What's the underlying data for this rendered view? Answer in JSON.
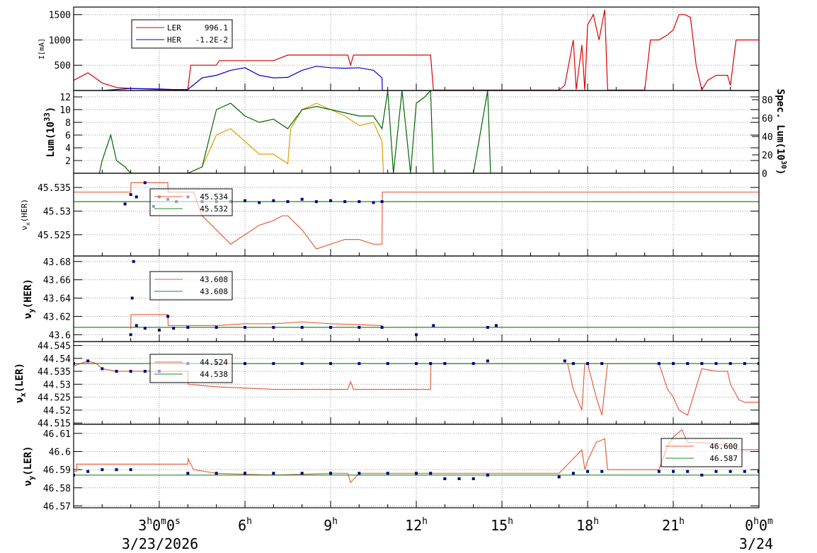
{
  "chart_data": [
    {
      "type": "line",
      "ylabel": "I[mA]",
      "yticks": [
        500,
        1000,
        1500
      ],
      "ylim": [
        0,
        1650
      ],
      "legend": [
        {
          "name": "LER",
          "value": "996.1",
          "color": "#dd0000"
        },
        {
          "name": "HER",
          "value": "-1.2E-2",
          "color": "#0000cc"
        }
      ],
      "series": [
        {
          "name": "LER",
          "color": "#dd0000",
          "x": [
            0,
            0.5,
            1.0,
            1.5,
            2.0,
            2.5,
            3.0,
            3.3,
            4.0,
            4.1,
            5.0,
            5.1,
            7.0,
            7.5,
            9.0,
            9.6,
            9.7,
            9.8,
            10.0,
            10.5,
            11.0,
            12.5,
            12.6,
            14.0,
            14.5,
            17.0,
            17.2,
            17.5,
            17.6,
            17.8,
            17.9,
            18.0,
            18.2,
            18.4,
            18.6,
            18.7,
            18.8,
            20.0,
            20.2,
            20.5,
            20.8,
            21.0,
            21.2,
            21.4,
            21.6,
            21.8,
            22.0,
            22.2,
            22.5,
            22.9,
            23.0,
            23.2,
            24.0
          ],
          "y": [
            200,
            350,
            150,
            60,
            40,
            30,
            20,
            15,
            10,
            500,
            500,
            590,
            590,
            700,
            700,
            700,
            500,
            700,
            700,
            700,
            700,
            700,
            10,
            10,
            10,
            10,
            100,
            1000,
            20,
            900,
            10,
            1300,
            1500,
            1000,
            1600,
            10,
            10,
            10,
            1000,
            1000,
            1100,
            1200,
            1500,
            1500,
            1450,
            500,
            10,
            200,
            300,
            300,
            100,
            1000,
            1000
          ]
        },
        {
          "name": "HER",
          "color": "#0000cc",
          "x": [
            0,
            1.0,
            2.0,
            3.0,
            3.5,
            4.0,
            4.5,
            5.0,
            5.5,
            6.0,
            6.5,
            7.0,
            7.5,
            8.0,
            8.5,
            9.0,
            9.5,
            10.0,
            10.5,
            10.8,
            10.81,
            24.0
          ],
          "y": [
            0,
            0,
            40,
            30,
            20,
            20,
            250,
            300,
            400,
            450,
            300,
            250,
            260,
            400,
            480,
            450,
            440,
            450,
            400,
            250,
            0,
            0
          ]
        }
      ]
    },
    {
      "type": "line",
      "ylabel": "Lum(10",
      "ylabel_exp": "33",
      "ylabel_close": ")",
      "ylabel_right": "Spec. Lum(10",
      "ylabel_right_exp": "30",
      "ylabel_right_close": ")",
      "yticks": [
        2,
        4,
        6,
        8,
        10,
        12
      ],
      "ylim": [
        0,
        13
      ],
      "yticks_right": [
        0,
        20,
        40,
        60,
        80
      ],
      "ylim_right": [
        0,
        90
      ],
      "series": [
        {
          "name": "",
          "color": "#e0a000",
          "x": [
            4.0,
            4.5,
            5.0,
            5.5,
            6.0,
            6.5,
            7.0,
            7.5,
            7.6,
            8.0,
            8.5,
            9.0,
            9.5,
            10.0,
            10.5,
            10.8,
            10.85
          ],
          "y": [
            0,
            1.0,
            6.0,
            7.0,
            5.0,
            3.0,
            3.0,
            1.5,
            7.0,
            10.0,
            11.0,
            10.0,
            9.0,
            7.5,
            8.0,
            5.0,
            0
          ]
        },
        {
          "name": "",
          "color": "#006600",
          "x": [
            0.9,
            1.0,
            1.3,
            1.5,
            1.8,
            2.0,
            4.0,
            4.5,
            5.0,
            5.5,
            6.0,
            6.5,
            7.0,
            7.5,
            8.0,
            8.5,
            9.0,
            9.5,
            10.0,
            10.5,
            10.8,
            11.0,
            11.2,
            11.5,
            11.8,
            12.0,
            12.3,
            12.5,
            12.6,
            14.0,
            14.5,
            14.6,
            15.0
          ],
          "y": [
            0,
            2.0,
            6.0,
            2.0,
            1.0,
            0,
            0,
            1.0,
            10.0,
            11.0,
            9.0,
            8.0,
            8.5,
            7.0,
            10.0,
            10.5,
            10.0,
            9.5,
            9.0,
            9.0,
            7.0,
            13.0,
            0,
            13.0,
            0,
            11.0,
            12.0,
            13.0,
            0,
            0,
            13.0,
            0,
            0
          ]
        }
      ]
    },
    {
      "type": "line",
      "ylabel": "ν",
      "ylabel_sub": "x",
      "ylabel_rest": "(HER)",
      "yticks": [
        45.525,
        45.53,
        45.535
      ],
      "ylim": [
        45.5205,
        45.538
      ],
      "legend": [
        {
          "name": "",
          "value": "45.534",
          "color": "#e86040"
        },
        {
          "name": "",
          "value": "45.532",
          "color": "#228822"
        }
      ],
      "series": [
        {
          "name": "",
          "color": "#e86040",
          "x": [
            0,
            2.0,
            2.01,
            3.3,
            3.31,
            4.2,
            4.5,
            5.0,
            5.5,
            6.0,
            6.5,
            7.0,
            7.3,
            7.5,
            8.0,
            8.5,
            9.0,
            9.5,
            10.0,
            10.5,
            10.8,
            10.81,
            24.0
          ],
          "y": [
            45.534,
            45.534,
            45.536,
            45.536,
            45.534,
            45.534,
            45.529,
            45.526,
            45.523,
            45.525,
            45.527,
            45.528,
            45.529,
            45.529,
            45.526,
            45.522,
            45.523,
            45.524,
            45.524,
            45.523,
            45.523,
            45.534,
            45.534
          ]
        },
        {
          "name": "",
          "color": "#228822",
          "x": [
            0,
            24.0
          ],
          "y": [
            45.532,
            45.532
          ]
        },
        {
          "name": "",
          "color": "#000080",
          "kind": "dots",
          "x": [
            1.8,
            2.0,
            2.2,
            2.5,
            2.8,
            3.0,
            3.3,
            3.6,
            4.0,
            4.5,
            5.0,
            5.5,
            6.0,
            6.5,
            7.0,
            7.5,
            8.0,
            8.5,
            9.0,
            9.5,
            10.0,
            10.5,
            10.8
          ],
          "y": [
            45.5315,
            45.5335,
            45.533,
            45.536,
            45.531,
            45.533,
            45.5325,
            45.532,
            45.533,
            45.532,
            45.532,
            45.532,
            45.5322,
            45.5318,
            45.5322,
            45.532,
            45.5325,
            45.532,
            45.5322,
            45.532,
            45.532,
            45.5318,
            45.532
          ]
        }
      ]
    },
    {
      "type": "line",
      "ylabel": "ν",
      "ylabel_sub": "y",
      "ylabel_rest": "(HER)",
      "yticks": [
        43.6,
        43.62,
        43.64,
        43.66,
        43.68
      ],
      "ylim": [
        43.5925,
        43.686
      ],
      "legend": [
        {
          "name": "",
          "value": "43.608",
          "color": "#e86040"
        },
        {
          "name": "",
          "value": "43.608",
          "color": "#228822"
        }
      ],
      "series": [
        {
          "name": "",
          "color": "#e86040",
          "x": [
            2.0,
            2.01,
            3.3,
            3.31,
            4.0,
            5.0,
            6.0,
            7.0,
            8.0,
            9.0,
            10.0,
            10.8
          ],
          "y": [
            43.606,
            43.622,
            43.622,
            43.61,
            43.61,
            43.61,
            43.612,
            43.612,
            43.614,
            43.612,
            43.611,
            43.61
          ]
        },
        {
          "name": "",
          "color": "#228822",
          "x": [
            0,
            24.0
          ],
          "y": [
            43.608,
            43.608
          ]
        },
        {
          "name": "",
          "color": "#000080",
          "kind": "dots",
          "x": [
            2.0,
            2.05,
            2.1,
            2.2,
            2.5,
            3.0,
            3.3,
            3.5,
            4.0,
            5.0,
            6.0,
            7.0,
            8.0,
            9.0,
            10.0,
            10.8,
            12.0,
            12.6,
            14.5,
            14.8
          ],
          "y": [
            43.6,
            43.64,
            43.68,
            43.61,
            43.607,
            43.605,
            43.62,
            43.607,
            43.608,
            43.608,
            43.608,
            43.608,
            43.608,
            43.608,
            43.608,
            43.608,
            43.6,
            43.61,
            43.608,
            43.61
          ]
        }
      ]
    },
    {
      "type": "line",
      "ylabel": "ν",
      "ylabel_sub": "x",
      "ylabel_rest": "(LER)",
      "yticks": [
        44.515,
        44.52,
        44.525,
        44.53,
        44.535,
        44.54,
        44.545
      ],
      "ylim": [
        44.5145,
        44.5465
      ],
      "legend": [
        {
          "name": "",
          "value": "44.524",
          "color": "#e86040"
        },
        {
          "name": "",
          "value": "44.538",
          "color": "#228822"
        }
      ],
      "series": [
        {
          "name": "",
          "color": "#e86040",
          "x": [
            0,
            0.5,
            0.8,
            1.0,
            1.5,
            2.0,
            3.0,
            4.0,
            4.01,
            5.0,
            7.0,
            9.6,
            9.7,
            9.8,
            10.0,
            12.5,
            12.51,
            17.3,
            17.5,
            17.8,
            17.9,
            18.0,
            18.3,
            18.5,
            18.7,
            20.5,
            20.8,
            21.0,
            21.2,
            21.5,
            22.0,
            22.5,
            22.9,
            23.0,
            23.3,
            23.5,
            24.0
          ],
          "y": [
            44.537,
            44.539,
            44.538,
            44.536,
            44.535,
            44.535,
            44.535,
            44.535,
            44.53,
            44.529,
            44.528,
            44.528,
            44.531,
            44.528,
            44.528,
            44.528,
            44.538,
            44.538,
            44.528,
            44.52,
            44.538,
            44.538,
            44.525,
            44.518,
            44.538,
            44.538,
            44.528,
            44.525,
            44.52,
            44.518,
            44.536,
            44.535,
            44.535,
            44.53,
            44.524,
            44.523,
            44.523
          ]
        },
        {
          "name": "",
          "color": "#228822",
          "x": [
            0,
            24.0
          ],
          "y": [
            44.538,
            44.538
          ]
        },
        {
          "name": "",
          "color": "#000080",
          "kind": "dots",
          "x": [
            0,
            0.5,
            1.0,
            1.5,
            2.0,
            2.5,
            3.0,
            4.0,
            5.0,
            6.0,
            7.0,
            8.0,
            9.0,
            10.0,
            11.0,
            12.0,
            12.5,
            13.0,
            14.0,
            14.5,
            17.2,
            17.5,
            18.0,
            18.5,
            20.5,
            21.0,
            21.5,
            22.0,
            22.5,
            23.0,
            23.5,
            24.0
          ],
          "y": [
            44.538,
            44.539,
            44.536,
            44.535,
            44.535,
            44.535,
            44.535,
            44.538,
            44.538,
            44.538,
            44.538,
            44.538,
            44.538,
            44.538,
            44.538,
            44.538,
            44.538,
            44.538,
            44.538,
            44.539,
            44.539,
            44.538,
            44.538,
            44.538,
            44.538,
            44.538,
            44.538,
            44.538,
            44.538,
            44.538,
            44.538,
            44.538
          ]
        }
      ]
    },
    {
      "type": "line",
      "ylabel": "ν",
      "ylabel_sub": "y",
      "ylabel_rest": "(LER)",
      "yticks": [
        46.57,
        46.58,
        46.59,
        46.6,
        46.61
      ],
      "ylim": [
        46.569,
        46.615
      ],
      "legend": [
        {
          "name": "",
          "value": "46.600",
          "color": "#e86040"
        },
        {
          "name": "",
          "value": "46.587",
          "color": "#228822"
        }
      ],
      "series": [
        {
          "name": "",
          "color": "#e86040",
          "x": [
            0,
            0.1,
            0.11,
            4.0,
            4.01,
            4.2,
            5.0,
            7.0,
            9.0,
            9.6,
            9.7,
            10.0,
            12.5,
            17.0,
            17.5,
            17.8,
            17.9,
            18.0,
            18.3,
            18.6,
            18.7,
            20.5,
            20.8,
            21.0,
            21.3,
            21.5,
            22.0,
            22.5,
            23.0,
            23.2,
            24.0
          ],
          "y": [
            46.589,
            46.589,
            46.593,
            46.593,
            46.596,
            46.59,
            46.588,
            46.587,
            46.588,
            46.588,
            46.583,
            46.588,
            46.588,
            46.588,
            46.596,
            46.601,
            46.59,
            46.595,
            46.605,
            46.607,
            46.59,
            46.59,
            46.603,
            46.608,
            46.612,
            46.605,
            46.605,
            46.604,
            46.603,
            46.601,
            46.601
          ]
        },
        {
          "name": "",
          "color": "#228822",
          "x": [
            0,
            24.0
          ],
          "y": [
            46.587,
            46.587
          ]
        },
        {
          "name": "",
          "color": "#000080",
          "kind": "dots",
          "x": [
            0,
            0.5,
            1.0,
            1.5,
            2.0,
            4.0,
            5.0,
            6.0,
            7.0,
            8.0,
            9.0,
            10.0,
            11.0,
            12.0,
            12.5,
            13.0,
            13.5,
            14.0,
            14.5,
            17.0,
            17.5,
            18.0,
            18.5,
            20.5,
            21.0,
            21.5,
            22.0,
            22.5,
            23.0,
            23.5,
            24.0
          ],
          "y": [
            46.587,
            46.589,
            46.59,
            46.59,
            46.59,
            46.588,
            46.588,
            46.588,
            46.588,
            46.588,
            46.588,
            46.588,
            46.588,
            46.588,
            46.588,
            46.585,
            46.585,
            46.585,
            46.587,
            46.586,
            46.588,
            46.589,
            46.589,
            46.589,
            46.589,
            46.589,
            46.587,
            46.589,
            46.589,
            46.589,
            46.589
          ]
        }
      ]
    }
  ],
  "x_axis": {
    "xlim": [
      0,
      24
    ],
    "ticks": [
      {
        "x": 3,
        "main": "3",
        "sup": "h",
        "main2": "0",
        "sup2": "m",
        "main3": "0",
        "sup3": "s"
      },
      {
        "x": 6,
        "main": "6",
        "sup": "h"
      },
      {
        "x": 9,
        "main": "9",
        "sup": "h"
      },
      {
        "x": 12,
        "main": "12",
        "sup": "h"
      },
      {
        "x": 15,
        "main": "15",
        "sup": "h"
      },
      {
        "x": 18,
        "main": "18",
        "sup": "h"
      },
      {
        "x": 21,
        "main": "21",
        "sup": "h"
      },
      {
        "x": 24,
        "main": "0",
        "sup": "h",
        "main2": "0",
        "sup2": "m"
      }
    ],
    "date_start": "3/23/2026",
    "date_end": "3/24"
  }
}
